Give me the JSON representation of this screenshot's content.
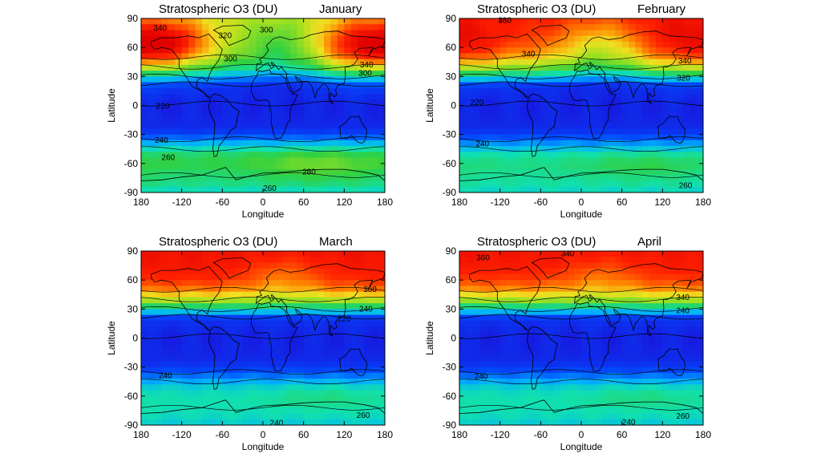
{
  "figure": {
    "description_free": true
  },
  "chart_data": [
    {
      "type": "heatmap",
      "title": "Stratospheric O3 (DU)",
      "month": "January",
      "xlabel": "Longitude",
      "ylabel": "Latitude",
      "xlim": [
        -180,
        180
      ],
      "ylim": [
        -90,
        90
      ],
      "xticks": [
        -180,
        -120,
        -60,
        0,
        60,
        120,
        180
      ],
      "xtick_labels": [
        "180",
        "-120",
        "-60",
        "0",
        "60",
        "120",
        "180"
      ],
      "yticks": [
        90,
        60,
        30,
        0,
        -30,
        -60,
        -90
      ],
      "ytick_labels": [
        "90",
        "60",
        "30",
        "0",
        "-30",
        "-60",
        "-90"
      ],
      "colormap": [
        "#1818e0",
        "#0050ff",
        "#00b0ff",
        "#10e0b0",
        "#30d040",
        "#a0e020",
        "#f0e020",
        "#ff8000",
        "#ff2000",
        "#e00000"
      ],
      "value_range_DU": [
        200,
        400
      ],
      "contour_labels": [
        {
          "text": "340",
          "lon": -152,
          "lat": 80
        },
        {
          "text": "300",
          "lon": 5,
          "lat": 78
        },
        {
          "text": "300",
          "lon": -48,
          "lat": 48
        },
        {
          "text": "320",
          "lon": -56,
          "lat": 72
        },
        {
          "text": "340",
          "lon": 153,
          "lat": 42
        },
        {
          "text": "300",
          "lon": 151,
          "lat": 33
        },
        {
          "text": "220",
          "lon": -148,
          "lat": -1
        },
        {
          "text": "240",
          "lon": -150,
          "lat": -36
        },
        {
          "text": "260",
          "lon": -140,
          "lat": -54
        },
        {
          "text": "280",
          "lon": 68,
          "lat": -69
        },
        {
          "text": "260",
          "lon": 10,
          "lat": -86
        }
      ]
    },
    {
      "type": "heatmap",
      "title": "Stratospheric O3 (DU)",
      "month": "February",
      "xlabel": "Longitude",
      "ylabel": "Latitude",
      "xlim": [
        -180,
        180
      ],
      "ylim": [
        -90,
        90
      ],
      "xticks": [
        -180,
        -120,
        -60,
        0,
        60,
        120,
        180
      ],
      "xtick_labels": [
        "180",
        "-120",
        "-60",
        "0",
        "60",
        "120",
        "180"
      ],
      "yticks": [
        90,
        60,
        30,
        0,
        -30,
        -60,
        -90
      ],
      "ytick_labels": [
        "90",
        "60",
        "30",
        "0",
        "-30",
        "-60",
        "-90"
      ],
      "colormap": [
        "#1818e0",
        "#0050ff",
        "#00b0ff",
        "#10e0b0",
        "#30d040",
        "#a0e020",
        "#f0e020",
        "#ff8000",
        "#ff2000",
        "#e00000"
      ],
      "value_range_DU": [
        200,
        400
      ],
      "contour_labels": [
        {
          "text": "380",
          "lon": -113,
          "lat": 88
        },
        {
          "text": "340",
          "lon": -78,
          "lat": 53
        },
        {
          "text": "340",
          "lon": 153,
          "lat": 46
        },
        {
          "text": "320",
          "lon": 151,
          "lat": 28
        },
        {
          "text": "220",
          "lon": -154,
          "lat": 3
        },
        {
          "text": "240",
          "lon": -146,
          "lat": -40
        },
        {
          "text": "260",
          "lon": 154,
          "lat": -83
        }
      ]
    },
    {
      "type": "heatmap",
      "title": "Stratospheric O3 (DU)",
      "month": "March",
      "xlabel": "Longitude",
      "ylabel": "Latitude",
      "xlim": [
        -180,
        180
      ],
      "ylim": [
        -90,
        90
      ],
      "xticks": [
        -180,
        -120,
        -60,
        0,
        60,
        120,
        180
      ],
      "xtick_labels": [
        "180",
        "-120",
        "-60",
        "0",
        "60",
        "120",
        "180"
      ],
      "yticks": [
        90,
        60,
        30,
        0,
        -30,
        -60,
        -90
      ],
      "ytick_labels": [
        "90",
        "60",
        "30",
        "0",
        "-30",
        "-60",
        "-90"
      ],
      "colormap": [
        "#1818e0",
        "#0050ff",
        "#00b0ff",
        "#10e0b0",
        "#30d040",
        "#a0e020",
        "#f0e020",
        "#ff8000",
        "#ff2000",
        "#e00000"
      ],
      "value_range_DU": [
        200,
        400
      ],
      "contour_labels": [
        {
          "text": "360",
          "lon": 158,
          "lat": 50
        },
        {
          "text": "240",
          "lon": 152,
          "lat": 30
        },
        {
          "text": "220",
          "lon": 120,
          "lat": 20
        },
        {
          "text": "240",
          "lon": -144,
          "lat": -39
        },
        {
          "text": "260",
          "lon": 148,
          "lat": -80
        },
        {
          "text": "240",
          "lon": 20,
          "lat": -88
        }
      ]
    },
    {
      "type": "heatmap",
      "title": "Stratospheric O3 (DU)",
      "month": "April",
      "xlabel": "Longitude",
      "ylabel": "Latitude",
      "xlim": [
        -180,
        180
      ],
      "ylim": [
        -90,
        90
      ],
      "xticks": [
        -180,
        -120,
        -60,
        0,
        60,
        120,
        180
      ],
      "xtick_labels": [
        "180",
        "-120",
        "-60",
        "0",
        "60",
        "120",
        "180"
      ],
      "yticks": [
        90,
        60,
        30,
        0,
        -30,
        -60,
        -90
      ],
      "ytick_labels": [
        "90",
        "60",
        "30",
        "0",
        "-30",
        "-60",
        "-90"
      ],
      "colormap": [
        "#1818e0",
        "#0050ff",
        "#00b0ff",
        "#10e0b0",
        "#30d040",
        "#a0e020",
        "#f0e020",
        "#ff8000",
        "#ff2000",
        "#e00000"
      ],
      "value_range_DU": [
        200,
        400
      ],
      "contour_labels": [
        {
          "text": "360",
          "lon": -145,
          "lat": 83
        },
        {
          "text": "340",
          "lon": -20,
          "lat": 87
        },
        {
          "text": "340",
          "lon": 150,
          "lat": 42
        },
        {
          "text": "240",
          "lon": 150,
          "lat": 28
        },
        {
          "text": "240",
          "lon": -148,
          "lat": -40
        },
        {
          "text": "260",
          "lon": 150,
          "lat": -81
        },
        {
          "text": "240",
          "lon": 70,
          "lat": -87
        }
      ]
    }
  ]
}
